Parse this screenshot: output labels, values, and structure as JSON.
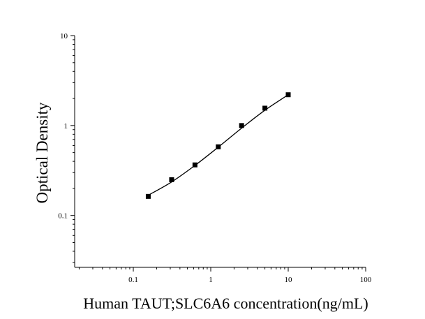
{
  "chart_data": {
    "type": "scatter",
    "title": "",
    "xlabel": "Human TAUT;SLC6A6 concentration(ng/mL)",
    "ylabel": "Optical Density",
    "x_scale": "log",
    "y_scale": "log",
    "xlim": [
      0.0175,
      100
    ],
    "ylim": [
      0.0265,
      10
    ],
    "x_ticks": [
      {
        "value": 0.1,
        "label": "0.1"
      },
      {
        "value": 1,
        "label": "1"
      },
      {
        "value": 10,
        "label": "10"
      },
      {
        "value": 100,
        "label": "100"
      }
    ],
    "y_ticks": [
      {
        "value": 0.1,
        "label": "0.1"
      },
      {
        "value": 1,
        "label": "1"
      },
      {
        "value": 10,
        "label": "10"
      }
    ],
    "grid": false,
    "legend": "none",
    "series": [
      {
        "points": [
          {
            "x": 0.156,
            "y": 0.163
          },
          {
            "x": 0.3125,
            "y": 0.25
          },
          {
            "x": 0.625,
            "y": 0.365
          },
          {
            "x": 1.25,
            "y": 0.58
          },
          {
            "x": 2.5,
            "y": 1.0
          },
          {
            "x": 5,
            "y": 1.56
          },
          {
            "x": 10,
            "y": 2.2
          }
        ],
        "fit_curve": [
          {
            "x": 0.156,
            "y": 0.168
          },
          {
            "x": 0.3125,
            "y": 0.236
          },
          {
            "x": 0.625,
            "y": 0.36
          },
          {
            "x": 1.25,
            "y": 0.575
          },
          {
            "x": 2.5,
            "y": 0.935
          },
          {
            "x": 5,
            "y": 1.48
          },
          {
            "x": 10,
            "y": 2.2
          }
        ],
        "marker_color": "#000000",
        "line_color": "#000000"
      }
    ]
  }
}
